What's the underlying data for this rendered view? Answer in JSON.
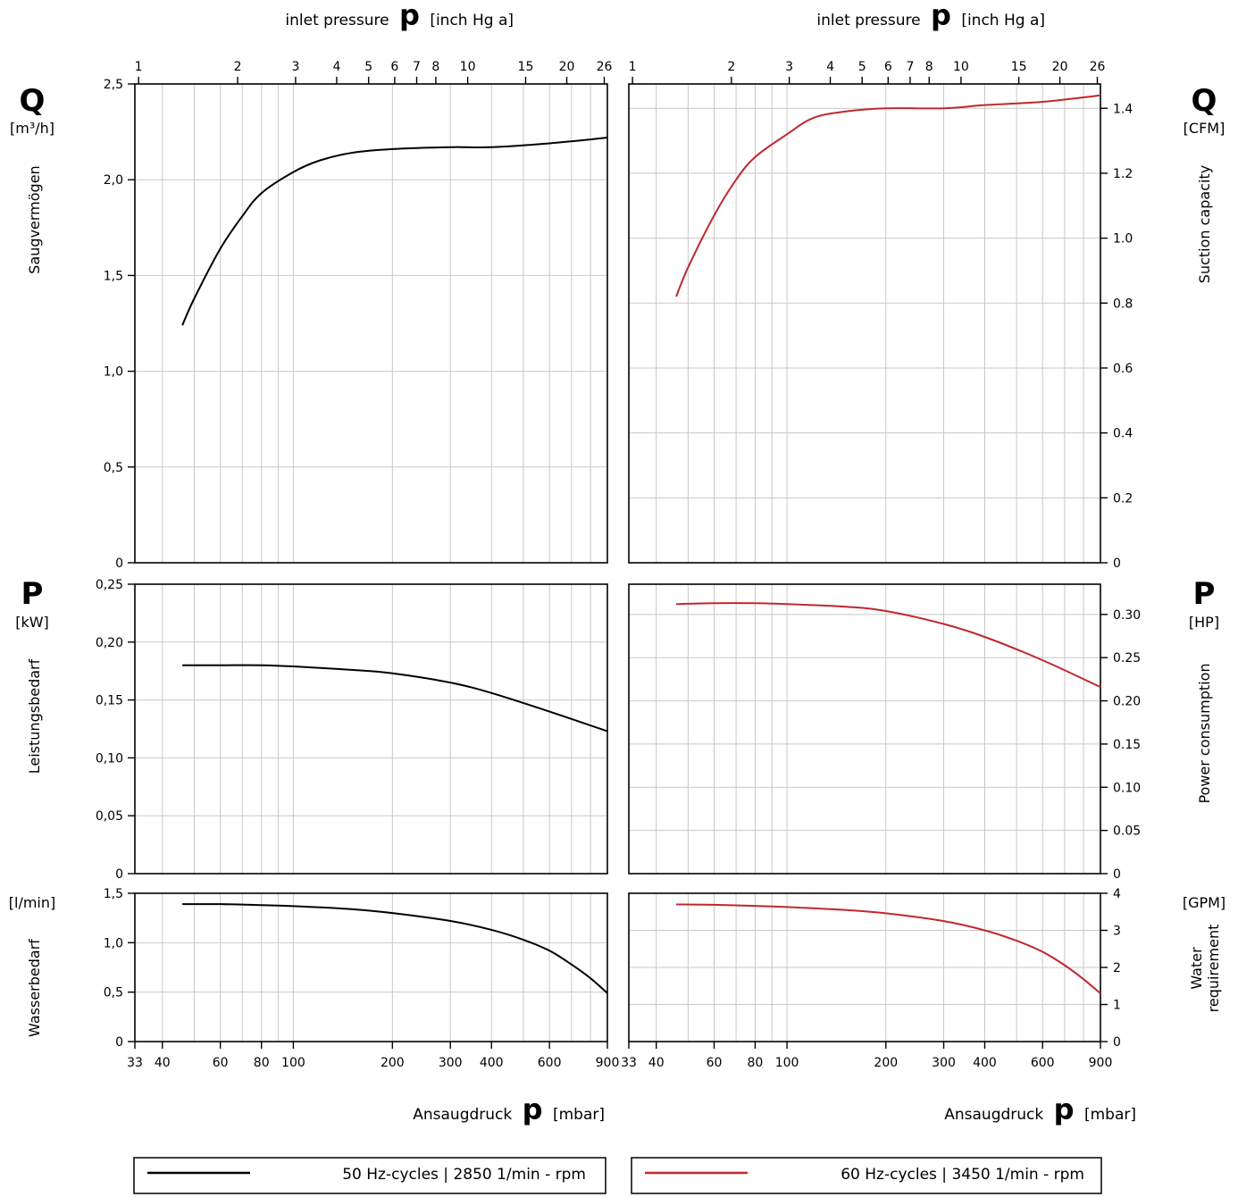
{
  "header": {
    "top_axis_prefix": "inlet pressure",
    "top_axis_symbol": "p",
    "top_axis_unit": "[inch Hg a]"
  },
  "footer": {
    "bottom_axis_prefix": "Ansaugdruck",
    "bottom_axis_symbol": "p",
    "bottom_axis_unit": "[mbar]"
  },
  "left_labels": {
    "q_symbol": "Q",
    "q_unit": "[m³/h]",
    "q_name": "Saugvermögen",
    "p_symbol": "P",
    "p_unit": "[kW]",
    "p_name": "Leistungsbedarf",
    "w_unit": "[l/min]",
    "w_name": "Wasserbedarf"
  },
  "right_labels": {
    "q_symbol": "Q",
    "q_unit": "[CFM]",
    "q_name": "Suction capacity",
    "p_symbol": "P",
    "p_unit": "[HP]",
    "p_name": "Power consumption",
    "w_unit": "[GPM]",
    "w_name_line1": "Water",
    "w_name_line2": "requirement"
  },
  "legend": {
    "left_label": "50 Hz-cycles | 2850 1/min - rpm",
    "right_label": "60 Hz-cycles | 3450 1/min - rpm",
    "left_color": "#000000",
    "right_color": "#c0282d"
  },
  "chart_data": {
    "type": "line",
    "x_scale": "log",
    "x_unit": "mbar",
    "x_range": [
      33,
      900
    ],
    "x_ticks_bottom": [
      {
        "v": 33,
        "label": "33"
      },
      {
        "v": 40,
        "label": "40"
      },
      {
        "v": 60,
        "label": "60"
      },
      {
        "v": 80,
        "label": "80"
      },
      {
        "v": 100,
        "label": "100"
      },
      {
        "v": 200,
        "label": "200"
      },
      {
        "v": 300,
        "label": "300"
      },
      {
        "v": 400,
        "label": "400"
      },
      {
        "v": 600,
        "label": "600"
      },
      {
        "v": 900,
        "label": "900"
      }
    ],
    "x_ticks_top_inHg": [
      {
        "v": 1,
        "label": "1"
      },
      {
        "v": 2,
        "label": "2"
      },
      {
        "v": 3,
        "label": "3"
      },
      {
        "v": 4,
        "label": "4"
      },
      {
        "v": 5,
        "label": "5"
      },
      {
        "v": 6,
        "label": "6"
      },
      {
        "v": 7,
        "label": "7"
      },
      {
        "v": 8,
        "label": "8"
      },
      {
        "v": 10,
        "label": "10"
      },
      {
        "v": 15,
        "label": "15"
      },
      {
        "v": 20,
        "label": "20"
      },
      {
        "v": 26,
        "label": "26"
      }
    ],
    "x_grid": [
      40,
      50,
      60,
      70,
      80,
      90,
      100,
      200,
      300,
      400,
      500,
      600,
      700,
      800,
      900
    ],
    "panels": [
      {
        "id": "suction-50hz",
        "side": "left",
        "row": "q",
        "ylim": [
          0,
          2.5
        ],
        "y_ticks": [
          {
            "v": 0,
            "label": "0"
          },
          {
            "v": 0.5,
            "label": "0,5"
          },
          {
            "v": 1.0,
            "label": "1,0"
          },
          {
            "v": 1.5,
            "label": "1,5"
          },
          {
            "v": 2.0,
            "label": "2,0"
          },
          {
            "v": 2.5,
            "label": "2,5"
          }
        ],
        "series": [
          {
            "color": "#000000",
            "x": [
              46,
              50,
              60,
              70,
              80,
              100,
              120,
              150,
              200,
              300,
              400,
              600,
              900
            ],
            "y": [
              1.24,
              1.38,
              1.64,
              1.81,
              1.93,
              2.04,
              2.1,
              2.14,
              2.16,
              2.17,
              2.17,
              2.19,
              2.22
            ]
          }
        ]
      },
      {
        "id": "suction-60hz",
        "side": "right",
        "row": "q",
        "ylim": [
          0,
          1.475
        ],
        "y_ticks": [
          {
            "v": 0,
            "label": "0"
          },
          {
            "v": 0.2,
            "label": "0.2"
          },
          {
            "v": 0.4,
            "label": "0.4"
          },
          {
            "v": 0.6,
            "label": "0.6"
          },
          {
            "v": 0.8,
            "label": "0.8"
          },
          {
            "v": 1.0,
            "label": "1.0"
          },
          {
            "v": 1.2,
            "label": "1.2"
          },
          {
            "v": 1.4,
            "label": "1.4"
          }
        ],
        "series": [
          {
            "color": "#c0282d",
            "x": [
              46,
              50,
              60,
              70,
              80,
              100,
              120,
              150,
              200,
              300,
              400,
              600,
              900
            ],
            "y": [
              0.82,
              0.91,
              1.07,
              1.18,
              1.25,
              1.32,
              1.37,
              1.39,
              1.4,
              1.4,
              1.41,
              1.42,
              1.44
            ]
          }
        ]
      },
      {
        "id": "power-50hz",
        "side": "left",
        "row": "p",
        "ylim": [
          0,
          0.25
        ],
        "y_ticks": [
          {
            "v": 0,
            "label": "0"
          },
          {
            "v": 0.05,
            "label": "0,05"
          },
          {
            "v": 0.1,
            "label": "0,10"
          },
          {
            "v": 0.15,
            "label": "0,15"
          },
          {
            "v": 0.2,
            "label": "0,20"
          },
          {
            "v": 0.25,
            "label": "0,25"
          }
        ],
        "series": [
          {
            "color": "#000000",
            "x": [
              46,
              60,
              80,
              100,
              150,
              200,
              300,
              400,
              600,
              900
            ],
            "y": [
              0.18,
              0.18,
              0.18,
              0.179,
              0.176,
              0.173,
              0.165,
              0.156,
              0.14,
              0.123
            ]
          }
        ]
      },
      {
        "id": "power-60hz",
        "side": "right",
        "row": "p",
        "ylim": [
          0,
          0.335
        ],
        "y_ticks": [
          {
            "v": 0,
            "label": "0"
          },
          {
            "v": 0.05,
            "label": "0.05"
          },
          {
            "v": 0.1,
            "label": "0.10"
          },
          {
            "v": 0.15,
            "label": "0.15"
          },
          {
            "v": 0.2,
            "label": "0.20"
          },
          {
            "v": 0.25,
            "label": "0.25"
          },
          {
            "v": 0.3,
            "label": "0.30"
          }
        ],
        "series": [
          {
            "color": "#c0282d",
            "x": [
              46,
              60,
              80,
              100,
              150,
              200,
              300,
              400,
              600,
              900
            ],
            "y": [
              0.312,
              0.313,
              0.313,
              0.312,
              0.309,
              0.304,
              0.289,
              0.274,
              0.247,
              0.216
            ]
          }
        ]
      },
      {
        "id": "water-50hz",
        "side": "left",
        "row": "w",
        "ylim": [
          0,
          1.5
        ],
        "y_ticks": [
          {
            "v": 0,
            "label": "0"
          },
          {
            "v": 0.5,
            "label": "0,5"
          },
          {
            "v": 1.0,
            "label": "1,0"
          },
          {
            "v": 1.5,
            "label": "1,5"
          }
        ],
        "series": [
          {
            "color": "#000000",
            "x": [
              46,
              60,
              80,
              100,
              150,
              200,
              300,
              400,
              500,
              600,
              700,
              800,
              900
            ],
            "y": [
              1.39,
              1.39,
              1.38,
              1.37,
              1.34,
              1.3,
              1.22,
              1.13,
              1.03,
              0.92,
              0.78,
              0.64,
              0.49
            ]
          }
        ]
      },
      {
        "id": "water-60hz",
        "side": "right",
        "row": "w",
        "ylim": [
          0,
          4
        ],
        "y_ticks": [
          {
            "v": 0,
            "label": "0"
          },
          {
            "v": 1,
            "label": "1"
          },
          {
            "v": 2,
            "label": "2"
          },
          {
            "v": 3,
            "label": "3"
          },
          {
            "v": 4,
            "label": "4"
          }
        ],
        "series": [
          {
            "color": "#c0282d",
            "x": [
              46,
              60,
              80,
              100,
              150,
              200,
              300,
              400,
              500,
              600,
              700,
              800,
              900
            ],
            "y": [
              3.7,
              3.69,
              3.66,
              3.63,
              3.55,
              3.46,
              3.25,
              3.0,
              2.72,
              2.42,
              2.06,
              1.68,
              1.3
            ]
          }
        ]
      }
    ]
  }
}
